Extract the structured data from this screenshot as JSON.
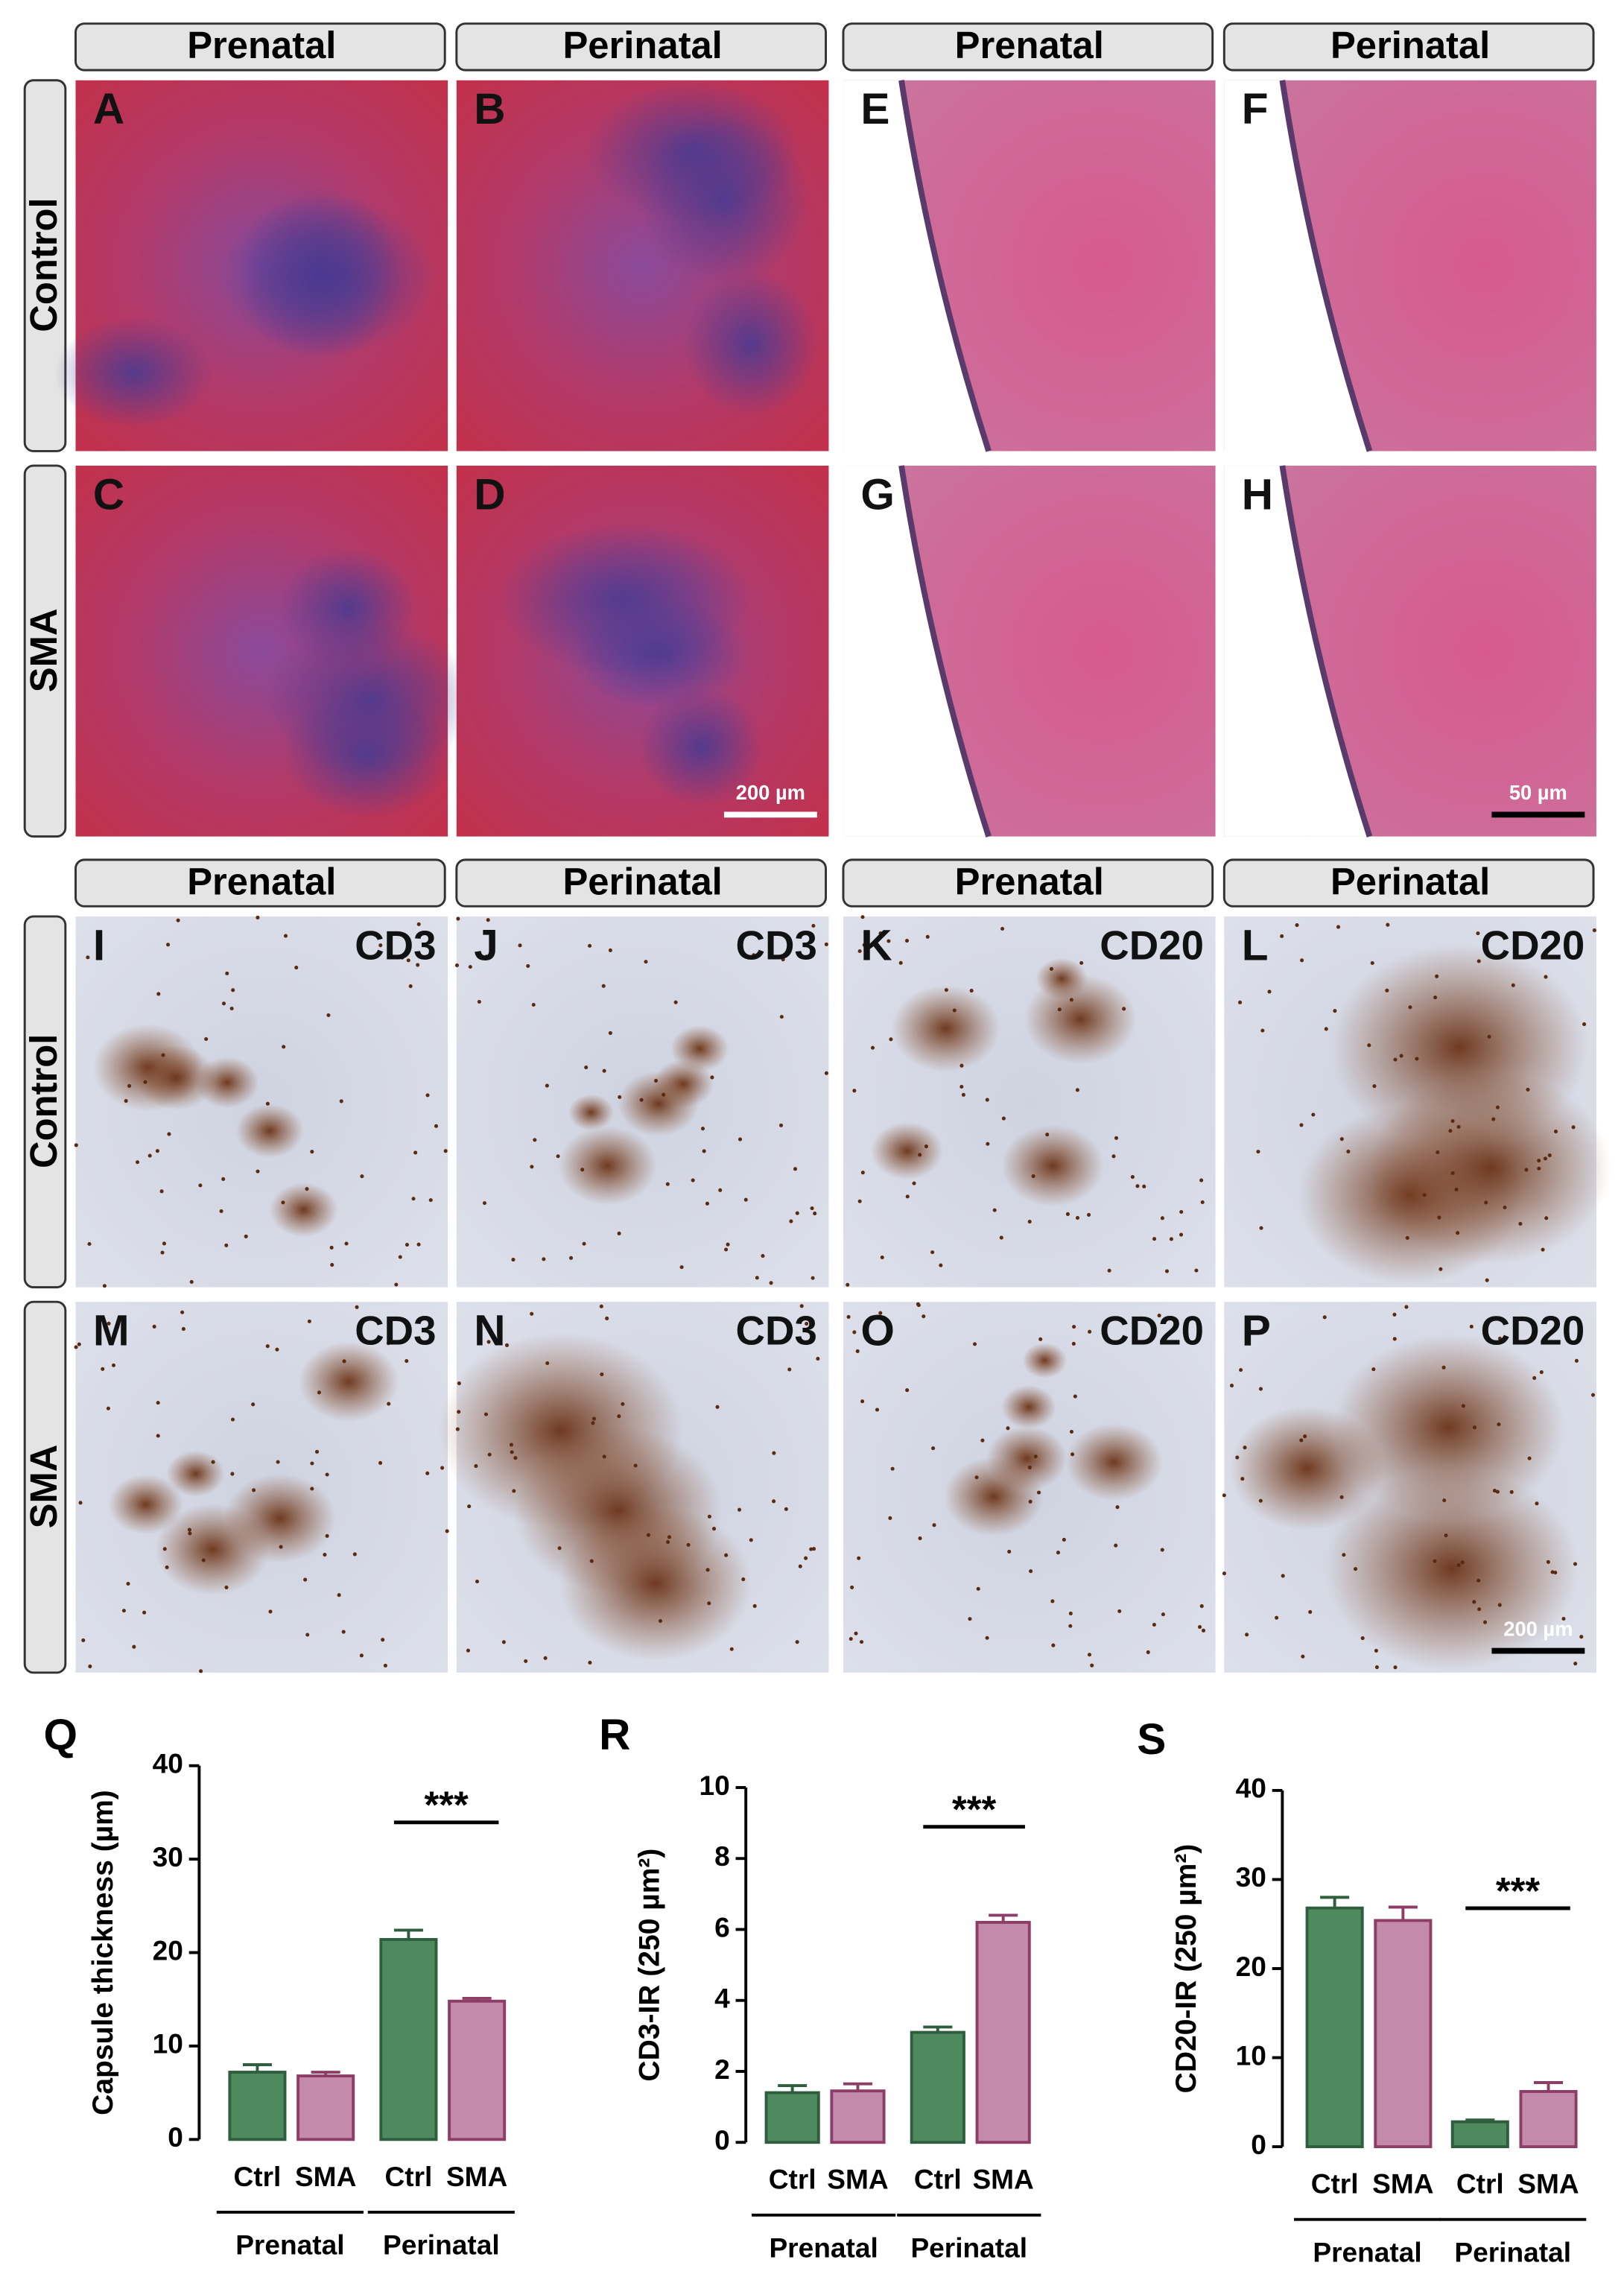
{
  "blocks": [
    {
      "headers": [
        "Prenatal",
        "Perinatal",
        "Prenatal",
        "Perinatal"
      ],
      "rows": [
        "Control",
        "SMA"
      ],
      "panels": [
        {
          "letter": "A"
        },
        {
          "letter": "B"
        },
        {
          "letter": "E"
        },
        {
          "letter": "F"
        },
        {
          "letter": "C"
        },
        {
          "letter": "D",
          "scale": "200 µm"
        },
        {
          "letter": "G"
        },
        {
          "letter": "H",
          "scale": "50 µm"
        }
      ]
    },
    {
      "headers": [
        "Prenatal",
        "Perinatal",
        "Prenatal",
        "Perinatal"
      ],
      "rows": [
        "Control",
        "SMA"
      ],
      "panels": [
        {
          "letter": "I",
          "stain": "CD3"
        },
        {
          "letter": "J",
          "stain": "CD3"
        },
        {
          "letter": "K",
          "stain": "CD20"
        },
        {
          "letter": "L",
          "stain": "CD20"
        },
        {
          "letter": "M",
          "stain": "CD3"
        },
        {
          "letter": "N",
          "stain": "CD3"
        },
        {
          "letter": "O",
          "stain": "CD20"
        },
        {
          "letter": "P",
          "stain": "CD20",
          "scale": "200 µm"
        }
      ]
    }
  ],
  "chart_data": [
    {
      "type": "bar",
      "panel": "Q",
      "ylabel": "Capsule thickness (µm)",
      "categories": [
        "Ctrl",
        "SMA",
        "Ctrl",
        "SMA"
      ],
      "groups": [
        "Prenatal",
        "Perinatal"
      ],
      "values": [
        7.2,
        6.8,
        21.4,
        14.8
      ],
      "errors": [
        0.8,
        0.4,
        1.0,
        0.3
      ],
      "colors": [
        "#4f8a5f",
        "#c48aaa",
        "#4f8a5f",
        "#c48aaa"
      ],
      "ylim": [
        0,
        40
      ],
      "yticks": [
        0,
        10,
        20,
        30,
        40
      ],
      "significance": "***"
    },
    {
      "type": "bar",
      "panel": "R",
      "ylabel": "CD3-IR (250 µm²)",
      "categories": [
        "Ctrl",
        "SMA",
        "Ctrl",
        "SMA"
      ],
      "groups": [
        "Prenatal",
        "Perinatal"
      ],
      "values": [
        1.4,
        1.45,
        3.1,
        6.2
      ],
      "errors": [
        0.2,
        0.2,
        0.15,
        0.2
      ],
      "colors": [
        "#4f8a5f",
        "#c48aaa",
        "#4f8a5f",
        "#c48aaa"
      ],
      "ylim": [
        0,
        10
      ],
      "yticks": [
        0,
        2,
        4,
        6,
        8,
        10
      ],
      "significance": "***"
    },
    {
      "type": "bar",
      "panel": "S",
      "ylabel": "CD20-IR (250 µm²)",
      "categories": [
        "Ctrl",
        "SMA",
        "Ctrl",
        "SMA"
      ],
      "groups": [
        "Prenatal",
        "Perinatal"
      ],
      "values": [
        26.8,
        25.4,
        2.8,
        6.2
      ],
      "errors": [
        1.2,
        1.5,
        0.2,
        1.0
      ],
      "colors": [
        "#4f8a5f",
        "#c48aaa",
        "#4f8a5f",
        "#c48aaa"
      ],
      "ylim": [
        0,
        40
      ],
      "yticks": [
        0,
        10,
        20,
        30,
        40
      ],
      "significance": "***"
    }
  ]
}
